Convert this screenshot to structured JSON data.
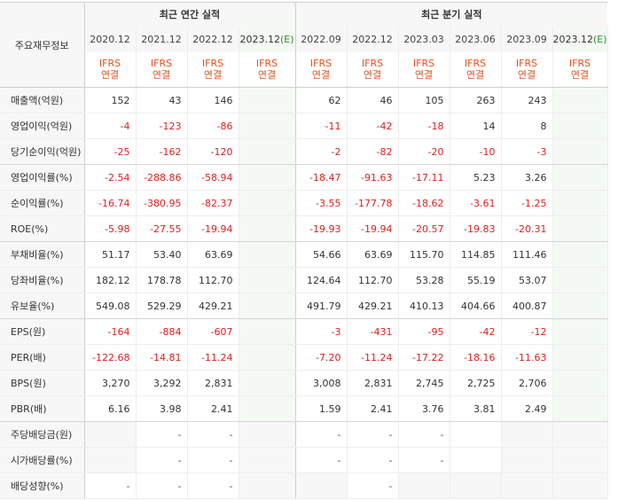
{
  "header": {
    "corner_label": "주요재무정보",
    "annual_title": "최근 연간 실적",
    "quarterly_title": "최근 분기 실적"
  },
  "annual_periods": [
    {
      "date": "2020.12",
      "basis": [
        "IFRS",
        "연결"
      ]
    },
    {
      "date": "2021.12",
      "basis": [
        "IFRS",
        "연결"
      ]
    },
    {
      "date": "2022.12",
      "basis": [
        "IFRS",
        "연결"
      ]
    },
    {
      "date": "2023.12",
      "estimate": "(E)",
      "basis": [
        "IFRS",
        "연결"
      ]
    }
  ],
  "quarterly_periods": [
    {
      "date": "2022.09",
      "basis": [
        "IFRS",
        "연결"
      ]
    },
    {
      "date": "2022.12",
      "basis": [
        "IFRS",
        "연결"
      ]
    },
    {
      "date": "2023.03",
      "basis": [
        "IFRS",
        "연결"
      ]
    },
    {
      "date": "2023.06",
      "basis": [
        "IFRS",
        "연결"
      ]
    },
    {
      "date": "2023.09",
      "basis": [
        "IFRS",
        "연결"
      ]
    },
    {
      "date": "2023.12",
      "estimate": "(E)",
      "basis": [
        "IFRS",
        "연결"
      ]
    }
  ],
  "rows": [
    {
      "label": "매출액(억원)",
      "annual": [
        "152",
        "43",
        "146",
        ""
      ],
      "quarterly": [
        "62",
        "46",
        "105",
        "263",
        "243",
        ""
      ]
    },
    {
      "label": "영업이익(억원)",
      "annual": [
        "-4",
        "-123",
        "-86",
        ""
      ],
      "quarterly": [
        "-11",
        "-42",
        "-18",
        "14",
        "8",
        ""
      ]
    },
    {
      "label": "당기순이익(억원)",
      "annual": [
        "-25",
        "-162",
        "-120",
        ""
      ],
      "quarterly": [
        "-2",
        "-82",
        "-20",
        "-10",
        "-3",
        ""
      ]
    },
    {
      "label": "영업이익률(%)",
      "annual": [
        "-2.54",
        "-288.86",
        "-58.94",
        ""
      ],
      "quarterly": [
        "-18.47",
        "-91.63",
        "-17.11",
        "5.23",
        "3.26",
        ""
      ]
    },
    {
      "label": "순이익률(%)",
      "annual": [
        "-16.74",
        "-380.95",
        "-82.37",
        ""
      ],
      "quarterly": [
        "-3.55",
        "-177.78",
        "-18.62",
        "-3.61",
        "-1.25",
        ""
      ]
    },
    {
      "label": "ROE(%)",
      "annual": [
        "-5.98",
        "-27.55",
        "-19.94",
        ""
      ],
      "quarterly": [
        "-19.93",
        "-19.94",
        "-20.57",
        "-19.83",
        "-20.31",
        ""
      ]
    },
    {
      "label": "부채비율(%)",
      "annual": [
        "51.17",
        "53.40",
        "63.69",
        ""
      ],
      "quarterly": [
        "54.66",
        "63.69",
        "115.70",
        "114.85",
        "111.46",
        ""
      ]
    },
    {
      "label": "당좌비율(%)",
      "annual": [
        "182.12",
        "178.78",
        "112.70",
        ""
      ],
      "quarterly": [
        "124.64",
        "112.70",
        "53.28",
        "55.19",
        "53.07",
        ""
      ]
    },
    {
      "label": "유보율(%)",
      "annual": [
        "549.08",
        "529.29",
        "429.21",
        ""
      ],
      "quarterly": [
        "491.79",
        "429.21",
        "410.13",
        "404.66",
        "400.87",
        ""
      ]
    },
    {
      "label": "EPS(원)",
      "annual": [
        "-164",
        "-884",
        "-607",
        ""
      ],
      "quarterly": [
        "-3",
        "-431",
        "-95",
        "-42",
        "-12",
        ""
      ]
    },
    {
      "label": "PER(배)",
      "annual": [
        "-122.68",
        "-14.81",
        "-11.24",
        ""
      ],
      "quarterly": [
        "-7.20",
        "-11.24",
        "-17.22",
        "-18.16",
        "-11.63",
        ""
      ]
    },
    {
      "label": "BPS(원)",
      "annual": [
        "3,270",
        "3,292",
        "2,831",
        ""
      ],
      "quarterly": [
        "3,008",
        "2,831",
        "2,745",
        "2,725",
        "2,706",
        ""
      ]
    },
    {
      "label": "PBR(배)",
      "annual": [
        "6.16",
        "3.98",
        "2.41",
        ""
      ],
      "quarterly": [
        "1.59",
        "2.41",
        "3.76",
        "3.81",
        "2.49",
        ""
      ]
    },
    {
      "label": "주당배당금(원)",
      "annual": [
        "",
        "-",
        "-",
        ""
      ],
      "quarterly": [
        "-",
        "-",
        "-",
        "",
        "",
        ""
      ]
    },
    {
      "label": "시가배당률(%)",
      "annual": [
        "",
        "-",
        "-",
        ""
      ],
      "quarterly": [
        "-",
        "-",
        "-",
        "",
        "",
        ""
      ]
    },
    {
      "label": "배당성향(%)",
      "annual": [
        "-",
        "-",
        "-",
        ""
      ],
      "quarterly": [
        "",
        "-",
        "",
        "",
        "",
        ""
      ]
    }
  ]
}
